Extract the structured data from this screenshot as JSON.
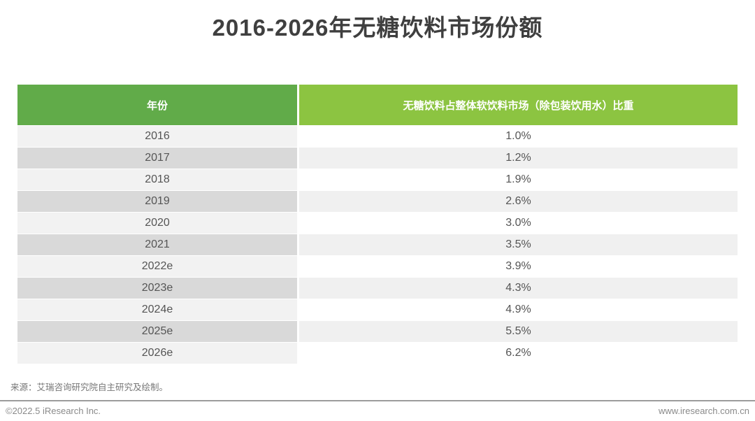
{
  "title": "2016-2026年无糖饮料市场份额",
  "table": {
    "headers": [
      "年份",
      "无糖饮料占整体软饮料市场（除包装饮用水）比重"
    ],
    "rows": [
      {
        "year": "2016",
        "share": "1.0%"
      },
      {
        "year": "2017",
        "share": "1.2%"
      },
      {
        "year": "2018",
        "share": "1.9%"
      },
      {
        "year": "2019",
        "share": "2.6%"
      },
      {
        "year": "2020",
        "share": "3.0%"
      },
      {
        "year": "2021",
        "share": "3.5%"
      },
      {
        "year": "2022e",
        "share": "3.9%"
      },
      {
        "year": "2023e",
        "share": "4.3%"
      },
      {
        "year": "2024e",
        "share": "4.9%"
      },
      {
        "year": "2025e",
        "share": "5.5%"
      },
      {
        "year": "2026e",
        "share": "6.2%"
      }
    ]
  },
  "source": "来源：艾瑞咨询研究院自主研究及绘制。",
  "footer": {
    "left": "©2022.5 iResearch Inc.",
    "right": "www.iresearch.com.cn"
  },
  "colors": {
    "header_left_green": "#61ab49",
    "header_right_green": "#8cc441",
    "row_odd_left": "#f2f2f2",
    "row_odd_right": "#ffffff",
    "row_even_left": "#d9d9d9",
    "row_even_right": "#f0f0f0",
    "text_dark": "#555555",
    "text_gray": "#8a8a8a"
  },
  "chart_data": {
    "type": "table",
    "title": "2016-2026年无糖饮料市场份额",
    "columns": [
      "年份",
      "无糖饮料占整体软饮料市场（除包装饮用水）比重"
    ],
    "categories": [
      "2016",
      "2017",
      "2018",
      "2019",
      "2020",
      "2021",
      "2022e",
      "2023e",
      "2024e",
      "2025e",
      "2026e"
    ],
    "values": [
      1.0,
      1.2,
      1.9,
      2.6,
      3.0,
      3.5,
      3.9,
      4.3,
      4.9,
      5.5,
      6.2
    ],
    "unit": "%",
    "legend_position": "none",
    "grid": false
  }
}
